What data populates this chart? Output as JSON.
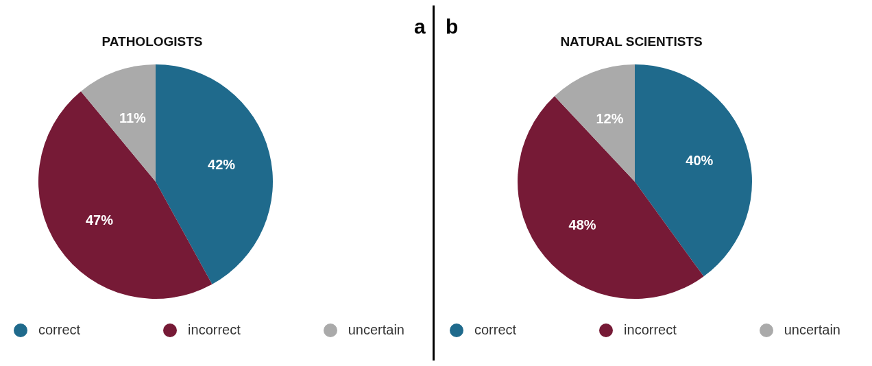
{
  "chart_data": [
    {
      "type": "pie",
      "title": "PATHOLOGISTS",
      "categories": [
        "correct",
        "incorrect",
        "uncertain"
      ],
      "values": [
        42,
        47,
        11
      ],
      "colors": [
        "#1f6a8c",
        "#761a36",
        "#aaaaaa"
      ],
      "value_labels": [
        "42%",
        "47%",
        "11%"
      ],
      "legend": "bottom",
      "annotations": [
        "a"
      ]
    },
    {
      "type": "pie",
      "title": "NATURAL SCIENTISTS",
      "categories": [
        "correct",
        "incorrect",
        "uncertain"
      ],
      "values": [
        40,
        48,
        12
      ],
      "colors": [
        "#1f6a8c",
        "#761a36",
        "#aaaaaa"
      ],
      "value_labels": [
        "40%",
        "48%",
        "12%"
      ],
      "legend": "bottom",
      "annotations": [
        "b"
      ]
    }
  ]
}
